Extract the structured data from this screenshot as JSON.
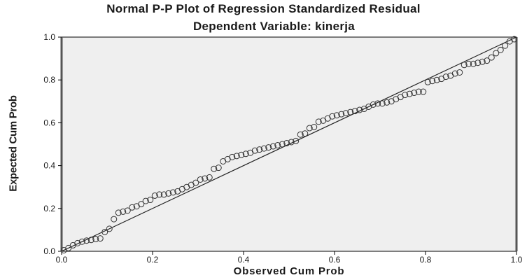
{
  "chart_data": {
    "type": "scatter",
    "title": "Normal P-P Plot of Regression Standardized Residual",
    "subtitle": "Dependent Variable: kinerja",
    "xlabel": "Observed Cum Prob",
    "ylabel": "Expected Cum Prob",
    "xlim": [
      0,
      1
    ],
    "ylim": [
      0,
      1
    ],
    "xticks": [
      "0.0",
      "0.2",
      "0.4",
      "0.6",
      "0.8",
      "1.0"
    ],
    "yticks": [
      "0.0",
      "0.2",
      "0.4",
      "0.6",
      "0.8",
      "1.0"
    ],
    "grid": false,
    "reference_line": [
      [
        0,
        0
      ],
      [
        1,
        1
      ]
    ],
    "colors": {
      "plot_background": "#efefef",
      "marker_stroke": "#333333",
      "line": "#222222"
    },
    "series": [
      {
        "x": [
          0.005,
          0.015,
          0.025,
          0.035,
          0.045,
          0.055,
          0.065,
          0.075,
          0.085,
          0.095,
          0.105,
          0.115,
          0.125,
          0.135,
          0.145,
          0.155,
          0.165,
          0.175,
          0.185,
          0.195,
          0.205,
          0.215,
          0.225,
          0.235,
          0.245,
          0.255,
          0.265,
          0.275,
          0.285,
          0.295,
          0.305,
          0.315,
          0.325,
          0.335,
          0.345,
          0.355,
          0.365,
          0.375,
          0.385,
          0.395,
          0.405,
          0.415,
          0.425,
          0.435,
          0.445,
          0.455,
          0.465,
          0.475,
          0.485,
          0.495,
          0.505,
          0.515,
          0.525,
          0.535,
          0.545,
          0.555,
          0.565,
          0.575,
          0.585,
          0.595,
          0.605,
          0.615,
          0.625,
          0.635,
          0.645,
          0.655,
          0.665,
          0.675,
          0.685,
          0.695,
          0.705,
          0.715,
          0.725,
          0.735,
          0.745,
          0.755,
          0.765,
          0.775,
          0.785,
          0.795,
          0.805,
          0.815,
          0.825,
          0.835,
          0.845,
          0.855,
          0.865,
          0.875,
          0.885,
          0.895,
          0.905,
          0.915,
          0.925,
          0.935,
          0.945,
          0.955,
          0.965,
          0.975,
          0.985,
          0.995
        ],
        "y": [
          0.005,
          0.015,
          0.028,
          0.038,
          0.045,
          0.05,
          0.053,
          0.057,
          0.06,
          0.09,
          0.105,
          0.15,
          0.18,
          0.185,
          0.19,
          0.205,
          0.21,
          0.22,
          0.235,
          0.24,
          0.26,
          0.265,
          0.265,
          0.27,
          0.275,
          0.28,
          0.29,
          0.3,
          0.31,
          0.32,
          0.335,
          0.34,
          0.345,
          0.385,
          0.39,
          0.42,
          0.43,
          0.44,
          0.445,
          0.45,
          0.455,
          0.46,
          0.47,
          0.475,
          0.48,
          0.485,
          0.49,
          0.495,
          0.5,
          0.505,
          0.51,
          0.515,
          0.545,
          0.55,
          0.575,
          0.58,
          0.605,
          0.61,
          0.62,
          0.63,
          0.635,
          0.64,
          0.645,
          0.65,
          0.655,
          0.66,
          0.665,
          0.675,
          0.685,
          0.69,
          0.69,
          0.695,
          0.7,
          0.71,
          0.72,
          0.73,
          0.735,
          0.74,
          0.745,
          0.745,
          0.79,
          0.795,
          0.8,
          0.805,
          0.815,
          0.82,
          0.83,
          0.835,
          0.87,
          0.875,
          0.875,
          0.88,
          0.885,
          0.89,
          0.905,
          0.925,
          0.94,
          0.96,
          0.98,
          0.99
        ]
      }
    ]
  }
}
